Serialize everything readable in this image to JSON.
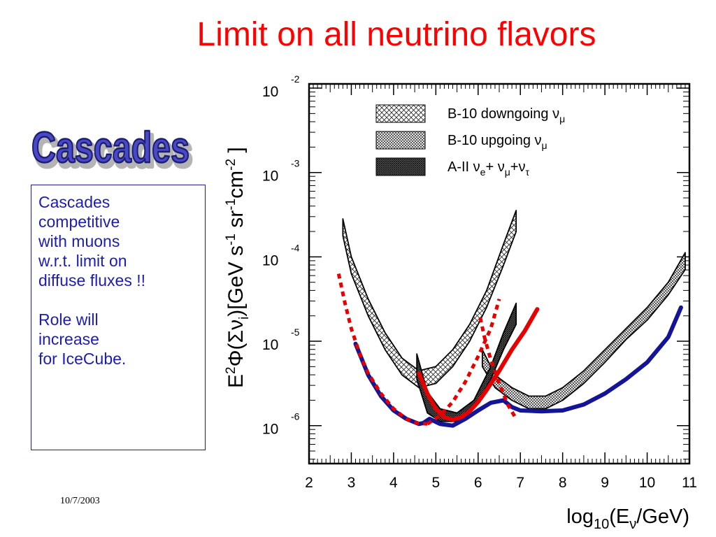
{
  "slide": {
    "title": "Limit on all neutrino flavors",
    "logo_text": "Cascades",
    "note_paragraph_1": "Cascades\ncompetitive\nwith muons\nw.r.t. limit on\ndiffuse fluxes !!",
    "note_paragraph_2": "Role will\nincrease\nfor IceCube.",
    "date": "10/7/2003"
  },
  "colors": {
    "title": "#ff0000",
    "note_text": "#1c1cb4",
    "note_border": "#1f1f8f",
    "logo_fill": "#4848c8",
    "logo_shadow": "#b4b4b4",
    "cascade_ice_cube": "#141496",
    "cascade_amanda": "#e60000"
  },
  "chart_data": {
    "type": "line",
    "xlabel": "log10(Eν/GeV)",
    "ylabel": "E²Φ(Σνi)[GeV s⁻¹ sr⁻¹ cm⁻² ]",
    "xlim": [
      2,
      11
    ],
    "ylim": [
      -6.45,
      -1.95
    ],
    "y_log_scale": true,
    "x_ticks": [
      "2",
      "3",
      "4",
      "5",
      "6",
      "7",
      "8",
      "9",
      "10",
      "11"
    ],
    "y_ticks": [
      {
        "base": "10",
        "exp": "-2",
        "value": -2
      },
      {
        "base": "10",
        "exp": "-3",
        "value": -3
      },
      {
        "base": "10",
        "exp": "-4",
        "value": -4
      },
      {
        "base": "10",
        "exp": "-5",
        "value": -5
      },
      {
        "base": "10",
        "exp": "-6",
        "value": -6
      }
    ],
    "legend": [
      {
        "label": "B-10 downgoing ν",
        "sub": "μ",
        "pattern": "coarse-cross"
      },
      {
        "label": "B-10 upgoing ν",
        "sub": "μ",
        "pattern": "fine-cross"
      },
      {
        "label": "A-II ν",
        "sub": "e",
        "label_mid": "+ ν",
        "sub2": "μ",
        "label_end": "+ν",
        "sub3": "τ",
        "pattern": "dense-dots"
      }
    ],
    "bands": [
      {
        "name": "B-10 downgoing ν_μ",
        "pattern": "coarse-cross",
        "upper": [
          [
            2.8,
            -3.55
          ],
          [
            3.0,
            -4.0
          ],
          [
            3.4,
            -4.5
          ],
          [
            3.8,
            -4.9
          ],
          [
            4.2,
            -5.2
          ],
          [
            4.6,
            -5.35
          ],
          [
            5.0,
            -5.3
          ],
          [
            5.4,
            -5.1
          ],
          [
            5.8,
            -4.8
          ],
          [
            6.2,
            -4.4
          ],
          [
            6.6,
            -3.85
          ],
          [
            6.9,
            -3.45
          ]
        ],
        "lower": [
          [
            2.8,
            -3.75
          ],
          [
            3.0,
            -4.2
          ],
          [
            3.4,
            -4.7
          ],
          [
            3.8,
            -5.1
          ],
          [
            4.2,
            -5.4
          ],
          [
            4.6,
            -5.55
          ],
          [
            5.0,
            -5.5
          ],
          [
            5.4,
            -5.3
          ],
          [
            5.8,
            -5.0
          ],
          [
            6.2,
            -4.6
          ],
          [
            6.6,
            -4.1
          ],
          [
            6.9,
            -3.7
          ]
        ]
      },
      {
        "name": "B-10 upgoing ν_μ",
        "pattern": "fine-cross",
        "upper": [
          [
            6.1,
            -5.1
          ],
          [
            6.4,
            -5.4
          ],
          [
            6.8,
            -5.55
          ],
          [
            7.2,
            -5.65
          ],
          [
            7.6,
            -5.65
          ],
          [
            8.0,
            -5.55
          ],
          [
            8.5,
            -5.35
          ],
          [
            9.0,
            -5.1
          ],
          [
            9.5,
            -4.85
          ],
          [
            10.0,
            -4.6
          ],
          [
            10.5,
            -4.3
          ],
          [
            10.9,
            -3.95
          ]
        ],
        "lower": [
          [
            6.1,
            -5.3
          ],
          [
            6.4,
            -5.55
          ],
          [
            6.8,
            -5.7
          ],
          [
            7.2,
            -5.8
          ],
          [
            7.6,
            -5.8
          ],
          [
            8.0,
            -5.7
          ],
          [
            8.5,
            -5.5
          ],
          [
            9.0,
            -5.25
          ],
          [
            9.5,
            -4.98
          ],
          [
            10.0,
            -4.75
          ],
          [
            10.5,
            -4.45
          ],
          [
            10.9,
            -4.15
          ]
        ]
      },
      {
        "name": "A-II ν_e+ν_μ+ν_τ",
        "pattern": "dense-dots",
        "upper": [
          [
            4.55,
            -5.15
          ],
          [
            4.8,
            -5.6
          ],
          [
            5.1,
            -5.8
          ],
          [
            5.5,
            -5.85
          ],
          [
            5.9,
            -5.7
          ],
          [
            6.3,
            -5.3
          ],
          [
            6.6,
            -4.9
          ],
          [
            6.9,
            -4.55
          ]
        ],
        "lower": [
          [
            4.55,
            -5.45
          ],
          [
            4.8,
            -5.85
          ],
          [
            5.1,
            -5.95
          ],
          [
            5.5,
            -5.95
          ],
          [
            5.9,
            -5.8
          ],
          [
            6.3,
            -5.45
          ],
          [
            6.6,
            -5.1
          ],
          [
            6.9,
            -4.8
          ]
        ]
      }
    ],
    "series": [
      {
        "color": "#141496",
        "style": "solid",
        "x": [
          3.1,
          3.4,
          3.7,
          4.0,
          4.3,
          4.6,
          4.7,
          4.85,
          5.1,
          5.4,
          5.7,
          6.0,
          6.3,
          6.6,
          6.8,
          7.0,
          7.5,
          8.0,
          8.5,
          9.0,
          9.5,
          10.0,
          10.5,
          10.8
        ],
        "y": [
          -5.03,
          -5.4,
          -5.65,
          -5.82,
          -5.92,
          -5.98,
          -5.97,
          -5.92,
          -5.98,
          -6.0,
          -5.92,
          -5.82,
          -5.73,
          -5.7,
          -5.78,
          -5.82,
          -5.83,
          -5.82,
          -5.75,
          -5.62,
          -5.45,
          -5.25,
          -4.95,
          -4.6
        ]
      },
      {
        "color": "#e60000",
        "style": "solid",
        "x": [
          4.6,
          4.8,
          5.0,
          5.2,
          5.4,
          5.6,
          5.8,
          6.0,
          6.2,
          6.5,
          6.8,
          7.1,
          7.4
        ],
        "y": [
          -5.38,
          -5.62,
          -5.8,
          -5.9,
          -5.93,
          -5.9,
          -5.83,
          -5.72,
          -5.58,
          -5.35,
          -5.1,
          -4.88,
          -4.62
        ]
      },
      {
        "color": "#e60000",
        "style": "dotted",
        "x": [
          2.7,
          2.85,
          3.0,
          3.2,
          3.4,
          3.7,
          4.0,
          4.3,
          4.55,
          4.8
        ],
        "y": [
          -4.2,
          -4.55,
          -4.85,
          -5.15,
          -5.38,
          -5.62,
          -5.8,
          -5.92,
          -5.97,
          -5.98
        ]
      },
      {
        "color": "#e60000",
        "style": "dotted",
        "x": [
          4.8,
          5.1,
          5.4,
          5.7,
          6.0,
          6.3,
          6.5
        ],
        "y": [
          -5.98,
          -5.88,
          -5.72,
          -5.48,
          -5.18,
          -4.85,
          -4.5
        ]
      },
      {
        "color": "#e60000",
        "style": "dotted",
        "x": [
          6.05,
          6.15,
          6.3,
          6.5,
          6.7,
          6.9
        ],
        "y": [
          -4.72,
          -4.95,
          -5.22,
          -5.5,
          -5.75,
          -5.92
        ]
      }
    ]
  }
}
